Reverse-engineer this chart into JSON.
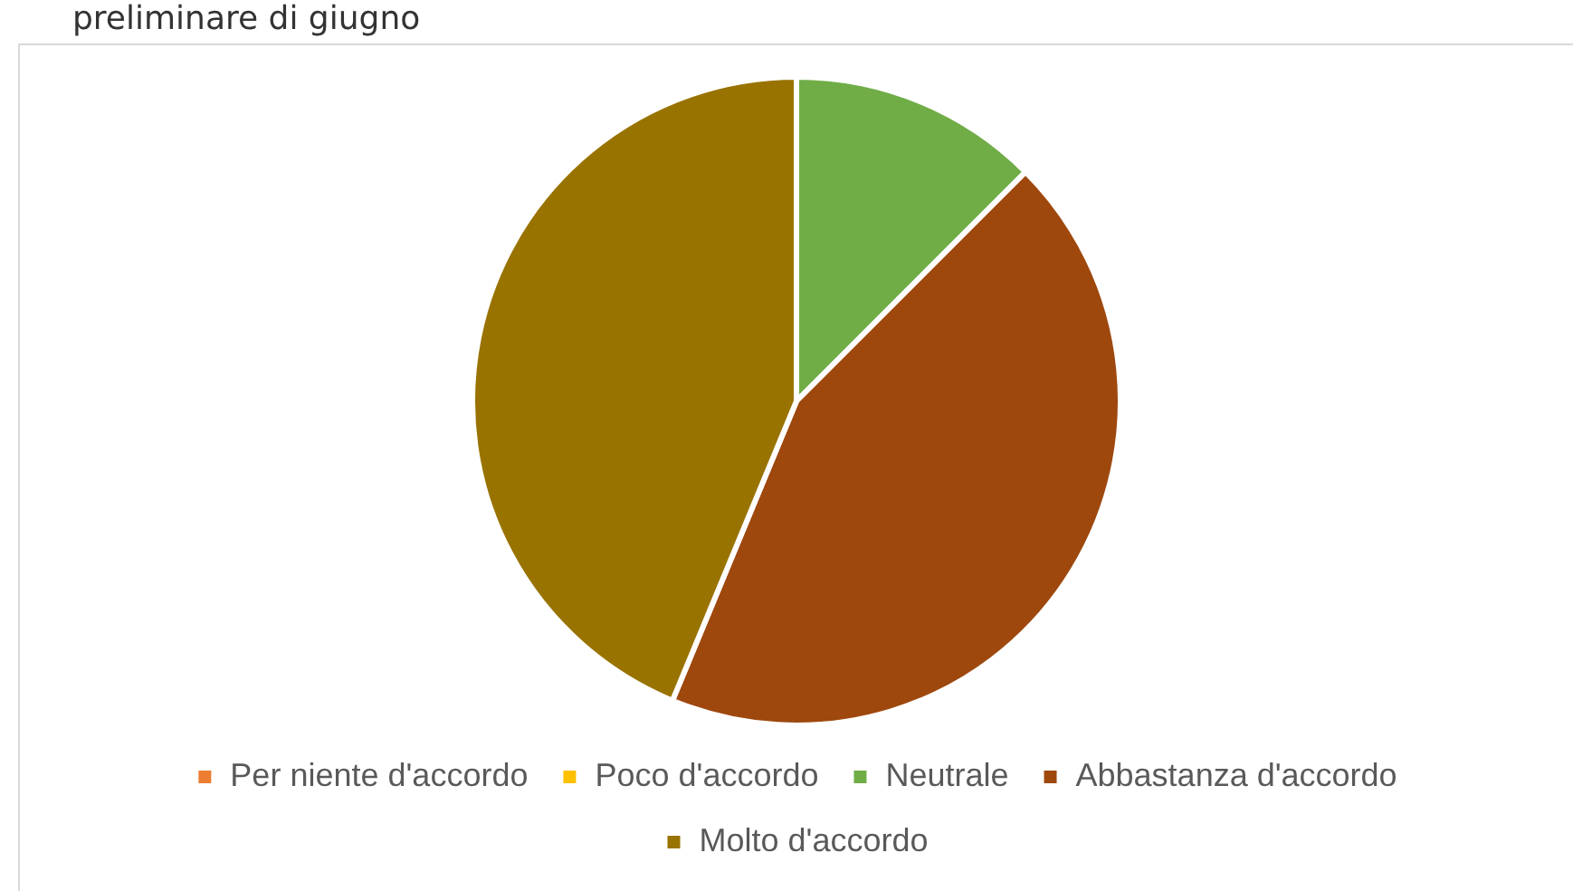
{
  "chart_data": {
    "type": "pie",
    "title": "preliminare di giugno",
    "categories": [
      "Per niente d'accordo",
      "Poco d'accordo",
      "Neutrale",
      "Abbastanza d'accordo",
      "Molto d'accordo"
    ],
    "values": [
      0,
      0,
      12.5,
      43.75,
      43.75
    ],
    "colors": [
      "#ed7d31",
      "#ffc000",
      "#70ad47",
      "#9e480e",
      "#997300"
    ],
    "legend": "bottom"
  }
}
